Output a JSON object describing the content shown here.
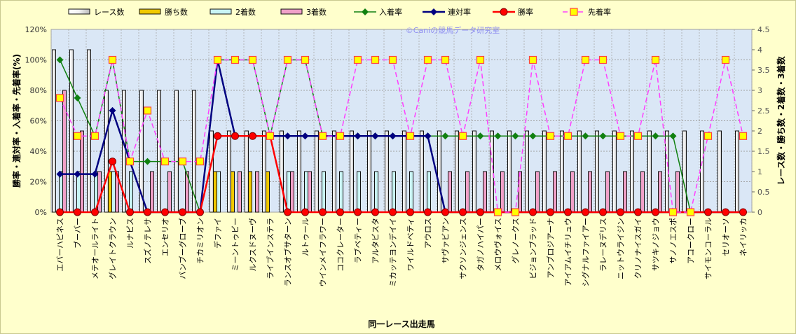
{
  "chart_data": {
    "type": "bar+line",
    "watermark": "©Caniの競馬データ研究室",
    "xlabel": "同一レース出走馬",
    "ylabel_left": "勝率・連対率・入着率・先着率(%)",
    "ylabel_right": "レース数・勝ち数・2着数・3着数",
    "ylim_left": [
      0,
      120
    ],
    "yticks_left": [
      "0%",
      "20%",
      "40%",
      "60%",
      "80%",
      "100%",
      "120%"
    ],
    "ylim_right": [
      0,
      4.5
    ],
    "yticks_right": [
      "0",
      "0.5",
      "1",
      "1.5",
      "2",
      "2.5",
      "3",
      "3.5",
      "4",
      "4.5"
    ],
    "grid": true,
    "legend": {
      "placement": "top",
      "entries": [
        "レース数",
        "勝ち数",
        "2着数",
        "3着数",
        "入着率",
        "連対率",
        "勝率",
        "先着率"
      ]
    },
    "colors": {
      "races": "#ffffff",
      "wins": "#f0c800",
      "second": "#c8f4f4",
      "third": "#f0a0c8",
      "show": "#108010",
      "rentai": "#000080",
      "win": "#ff0000",
      "senchaku": "#ff40ff"
    },
    "categories": [
      "エバーハピネス",
      "ブーバー",
      "メテオールライト",
      "グレイトクラウン",
      "ルナピス",
      "スズノテレサ",
      "エンセリオ",
      "バンブーグローブ",
      "チカミリオン",
      "デファイ",
      "ミーントゥビー",
      "ルクスドヌーヴ",
      "ライブインステラ",
      "ランスオブサターン",
      "ルトゥール",
      "ウインメイフラワー",
      "ココクレーター",
      "ラブベティー",
      "アルタビスタ",
      "ミカッテヨンデイイ",
      "ワイルドベティ",
      "アウロス",
      "サヴァビアン",
      "サクソンジェンス",
      "タガノハイパー",
      "メロウヴォイス",
      "グレノークス",
      "ビジョンブラッド",
      "アンブロジアーナ",
      "アイアムイチリュウ",
      "シグナルファイアー",
      "ラレーヌデリス",
      "ニットウライジン",
      "クリノナイスガイ",
      "サツキノジョウ",
      "サノノエスポ",
      "アコークロー",
      "サイモンコーラル",
      "セリオーソ",
      "ネイリッカ"
    ],
    "series": [
      {
        "name": "レース数",
        "axis": "right",
        "type": "bar",
        "values": [
          4,
          4,
          4,
          3,
          3,
          3,
          3,
          3,
          3,
          2,
          2,
          2,
          2,
          2,
          2,
          2,
          2,
          2,
          2,
          2,
          2,
          2,
          2,
          2,
          2,
          2,
          2,
          2,
          2,
          2,
          2,
          2,
          2,
          2,
          2,
          2,
          2,
          2,
          2,
          2
        ]
      },
      {
        "name": "勝ち数",
        "axis": "right",
        "type": "bar",
        "values": [
          0,
          0,
          0,
          1,
          0,
          0,
          0,
          0,
          0,
          1,
          1,
          1,
          1,
          0,
          0,
          0,
          0,
          0,
          0,
          0,
          0,
          0,
          0,
          0,
          0,
          0,
          0,
          0,
          0,
          0,
          0,
          0,
          0,
          0,
          0,
          0,
          0,
          0,
          0,
          0
        ]
      },
      {
        "name": "2着数",
        "axis": "right",
        "type": "bar",
        "values": [
          1,
          1,
          1,
          1,
          1,
          0,
          0,
          0,
          0,
          1,
          0,
          0,
          0,
          1,
          1,
          1,
          1,
          1,
          1,
          1,
          1,
          1,
          0,
          0,
          0,
          0,
          0,
          0,
          0,
          0,
          0,
          0,
          0,
          0,
          0,
          0,
          0,
          0,
          0,
          0
        ]
      },
      {
        "name": "3着数",
        "axis": "right",
        "type": "bar",
        "values": [
          3,
          2,
          1,
          1,
          0,
          1,
          1,
          1,
          0,
          0,
          1,
          1,
          0,
          1,
          1,
          0,
          0,
          0,
          0,
          0,
          0,
          0,
          1,
          1,
          1,
          1,
          1,
          1,
          1,
          1,
          1,
          1,
          1,
          1,
          1,
          1,
          0,
          0,
          0,
          0
        ]
      },
      {
        "name": "入着率",
        "axis": "left",
        "type": "line",
        "values": [
          100,
          75,
          50,
          100,
          33.3,
          33.3,
          33.3,
          33.3,
          0,
          100,
          100,
          100,
          50,
          100,
          100,
          50,
          50,
          50,
          50,
          50,
          50,
          50,
          50,
          50,
          50,
          50,
          50,
          50,
          50,
          50,
          50,
          50,
          50,
          50,
          50,
          50,
          0,
          0,
          0,
          0
        ]
      },
      {
        "name": "連対率",
        "axis": "left",
        "type": "line",
        "values": [
          25,
          25,
          25,
          66.7,
          33.3,
          0,
          0,
          0,
          0,
          100,
          50,
          50,
          50,
          50,
          50,
          50,
          50,
          50,
          50,
          50,
          50,
          50,
          0,
          0,
          0,
          0,
          0,
          0,
          0,
          0,
          0,
          0,
          0,
          0,
          0,
          0,
          0,
          0,
          0,
          0
        ]
      },
      {
        "name": "勝率",
        "axis": "left",
        "type": "line",
        "values": [
          0,
          0,
          0,
          33.3,
          0,
          0,
          0,
          0,
          0,
          50,
          50,
          50,
          50,
          0,
          0,
          0,
          0,
          0,
          0,
          0,
          0,
          0,
          0,
          0,
          0,
          0,
          0,
          0,
          0,
          0,
          0,
          0,
          0,
          0,
          0,
          0,
          0,
          0,
          0,
          0
        ]
      },
      {
        "name": "先着率",
        "axis": "left",
        "type": "line",
        "values": [
          75,
          50,
          50,
          100,
          33.3,
          66.7,
          33.3,
          33.3,
          33.3,
          100,
          100,
          100,
          50,
          100,
          100,
          50,
          50,
          100,
          100,
          100,
          50,
          100,
          100,
          50,
          100,
          0,
          0,
          100,
          50,
          50,
          100,
          100,
          50,
          50,
          100,
          0,
          0,
          50,
          100,
          50
        ]
      }
    ]
  }
}
